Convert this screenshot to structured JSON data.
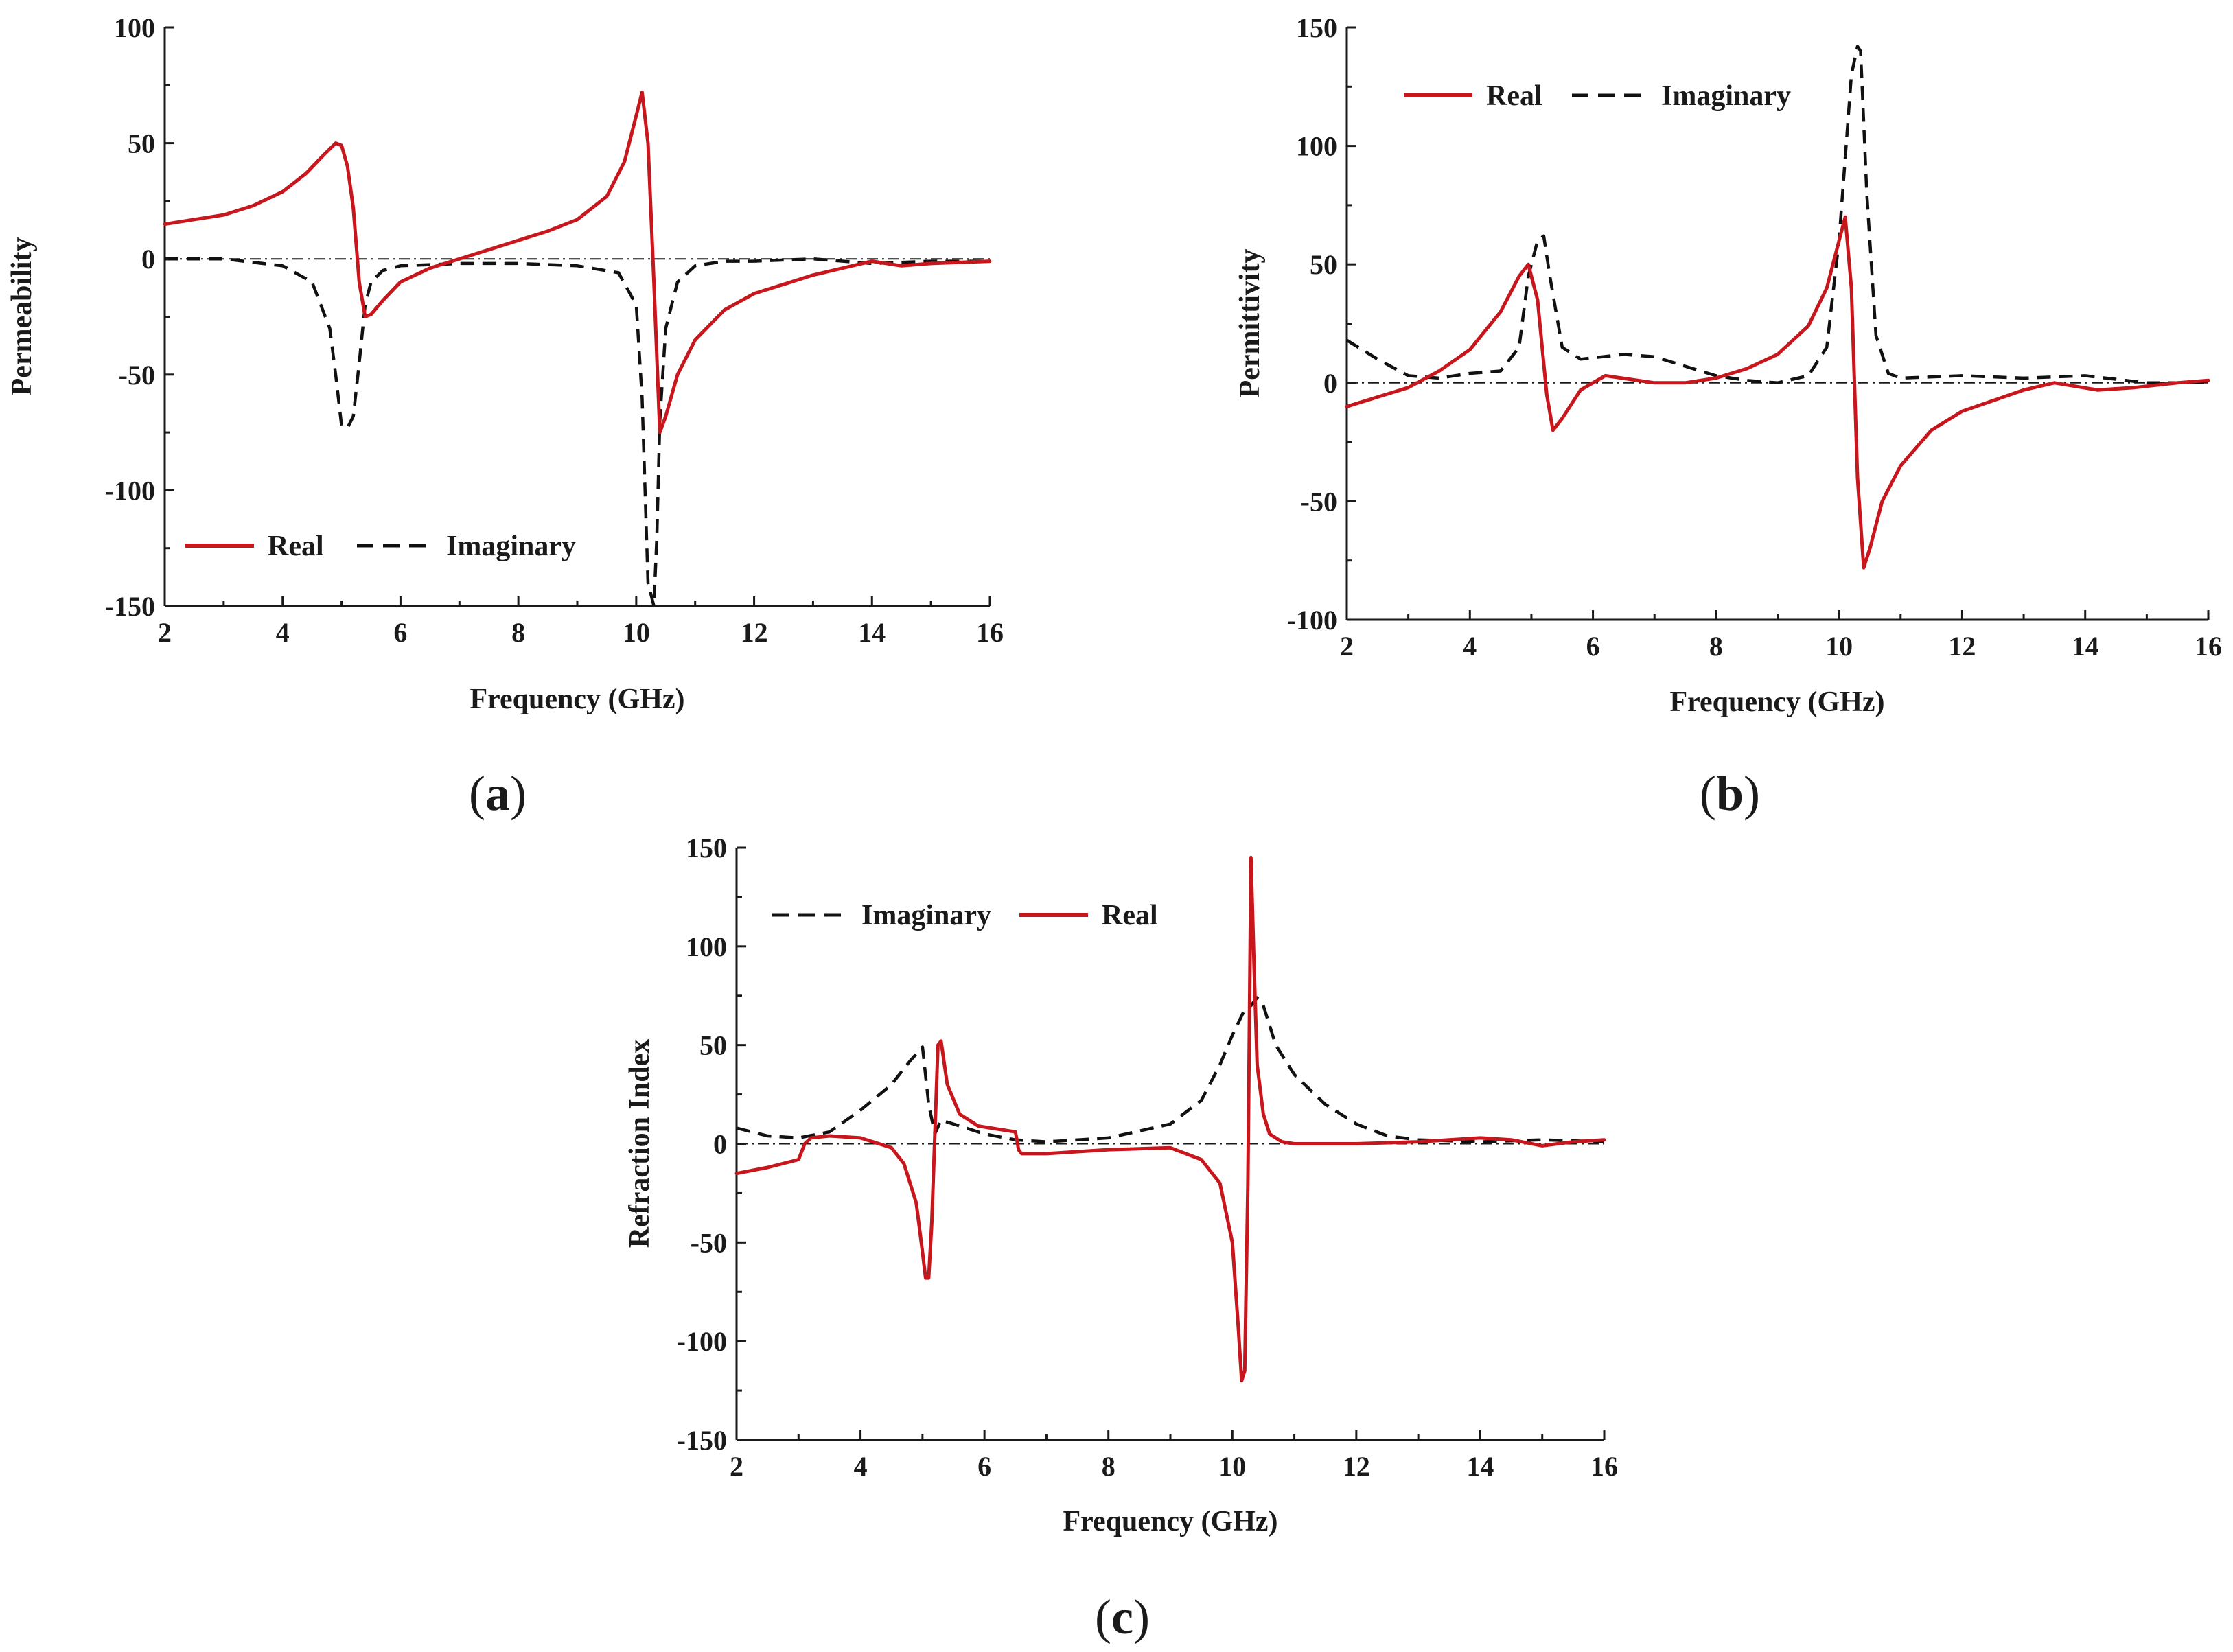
{
  "figure": {
    "colors": {
      "real": "#c8161d",
      "imaginary": "#111111",
      "axis": "#1a1a1a"
    }
  },
  "chart_data": [
    {
      "id": "a",
      "type": "line",
      "panel_label": {
        "open": "(",
        "letter": "a",
        "close": ")"
      },
      "xlabel": "Frequency (GHz)",
      "ylabel": "Permeability",
      "xlim": [
        2,
        16
      ],
      "ylim": [
        -150,
        100
      ],
      "xticks": [
        2,
        4,
        6,
        8,
        10,
        12,
        14,
        16
      ],
      "yticks": [
        -150,
        -100,
        -50,
        0,
        50,
        100
      ],
      "zero_reference_line": true,
      "legend_position": "bottom-left",
      "legend_order": [
        "Real",
        "Imaginary"
      ],
      "series": [
        {
          "name": "Real",
          "style": "solid",
          "x": [
            2,
            3,
            3.5,
            4,
            4.4,
            4.7,
            4.9,
            5.0,
            5.1,
            5.2,
            5.3,
            5.4,
            5.5,
            5.7,
            6,
            6.5,
            7,
            8,
            8.5,
            9,
            9.5,
            9.8,
            10.0,
            10.1,
            10.2,
            10.3,
            10.4,
            10.5,
            10.7,
            11,
            11.5,
            12,
            13,
            13.5,
            14,
            14.5,
            15,
            16
          ],
          "y": [
            15,
            19,
            23,
            29,
            37,
            45,
            50,
            49,
            40,
            22,
            -10,
            -25,
            -24,
            -18,
            -10,
            -4,
            0,
            8,
            12,
            17,
            27,
            42,
            62,
            72,
            50,
            -10,
            -75,
            -68,
            -50,
            -35,
            -22,
            -15,
            -7,
            -4,
            -1,
            -3,
            -2,
            -1
          ]
        },
        {
          "name": "Imaginary",
          "style": "dashed",
          "x": [
            2,
            3,
            4,
            4.5,
            4.8,
            4.9,
            5.0,
            5.1,
            5.2,
            5.3,
            5.4,
            5.5,
            5.7,
            6,
            7,
            8,
            9,
            9.7,
            10.0,
            10.1,
            10.2,
            10.3,
            10.35,
            10.4,
            10.5,
            10.7,
            11,
            11.5,
            12,
            13,
            14,
            15,
            16
          ],
          "y": [
            0,
            0,
            -3,
            -10,
            -30,
            -50,
            -72,
            -73,
            -68,
            -45,
            -20,
            -10,
            -5,
            -3,
            -2,
            -2,
            -3,
            -6,
            -20,
            -60,
            -140,
            -150,
            -120,
            -70,
            -30,
            -10,
            -3,
            -1,
            -1,
            0,
            -2,
            -1,
            -1
          ]
        }
      ]
    },
    {
      "id": "b",
      "type": "line",
      "panel_label": {
        "open": "(",
        "letter": "b",
        "close": ")"
      },
      "xlabel": "Frequency (GHz)",
      "ylabel": "Permittivity",
      "xlim": [
        2,
        16
      ],
      "ylim": [
        -100,
        150
      ],
      "xticks": [
        2,
        4,
        6,
        8,
        10,
        12,
        14,
        16
      ],
      "yticks": [
        -100,
        -50,
        0,
        50,
        100,
        150
      ],
      "zero_reference_line": true,
      "legend_position": "top-left",
      "legend_order": [
        "Real",
        "Imaginary"
      ],
      "series": [
        {
          "name": "Real",
          "style": "solid",
          "x": [
            2,
            2.5,
            3,
            3.5,
            4,
            4.5,
            4.8,
            4.95,
            5.1,
            5.25,
            5.35,
            5.5,
            5.8,
            6.2,
            7,
            7.5,
            8,
            8.5,
            9,
            9.5,
            9.8,
            10.0,
            10.1,
            10.2,
            10.3,
            10.4,
            10.5,
            10.7,
            11,
            11.5,
            12,
            13,
            13.5,
            14.2,
            14.8,
            15.5,
            16
          ],
          "y": [
            -10,
            -6,
            -2,
            5,
            14,
            30,
            45,
            50,
            35,
            -5,
            -20,
            -15,
            -3,
            3,
            0,
            0,
            2,
            6,
            12,
            24,
            40,
            60,
            70,
            40,
            -40,
            -78,
            -70,
            -50,
            -35,
            -20,
            -12,
            -3,
            0,
            -3,
            -2,
            0,
            1
          ]
        },
        {
          "name": "Imaginary",
          "style": "dashed",
          "x": [
            2,
            2.5,
            3,
            3.5,
            4,
            4.5,
            4.8,
            4.95,
            5.1,
            5.2,
            5.3,
            5.5,
            5.8,
            6.5,
            7,
            7.5,
            8,
            8.5,
            9,
            9.5,
            9.8,
            10.0,
            10.2,
            10.3,
            10.35,
            10.45,
            10.6,
            10.8,
            11,
            12,
            13,
            14,
            15,
            16
          ],
          "y": [
            18,
            10,
            3,
            2,
            4,
            5,
            15,
            45,
            60,
            62,
            45,
            15,
            10,
            12,
            11,
            7,
            3,
            1,
            0,
            3,
            15,
            60,
            130,
            142,
            140,
            80,
            20,
            4,
            2,
            3,
            2,
            3,
            0,
            0
          ]
        }
      ]
    },
    {
      "id": "c",
      "type": "line",
      "panel_label": {
        "open": "(",
        "letter": "c",
        "close": ")"
      },
      "xlabel": "Frequency (GHz)",
      "ylabel": "Refraction Index",
      "xlim": [
        2,
        16
      ],
      "ylim": [
        -150,
        150
      ],
      "xticks": [
        2,
        4,
        6,
        8,
        10,
        12,
        14,
        16
      ],
      "yticks": [
        -150,
        -100,
        -50,
        0,
        50,
        100,
        150
      ],
      "zero_reference_line": true,
      "legend_position": "top-left",
      "legend_order": [
        "Imaginary",
        "Real"
      ],
      "series": [
        {
          "name": "Real",
          "style": "solid",
          "x": [
            2,
            2.5,
            3.0,
            3.1,
            3.2,
            3.5,
            4.0,
            4.5,
            4.7,
            4.9,
            5.0,
            5.05,
            5.1,
            5.15,
            5.2,
            5.25,
            5.3,
            5.4,
            5.6,
            5.9,
            6.5,
            6.55,
            6.6,
            7,
            8,
            9,
            9.5,
            9.8,
            10.0,
            10.1,
            10.15,
            10.2,
            10.25,
            10.3,
            10.35,
            10.4,
            10.5,
            10.6,
            10.8,
            11,
            12,
            13,
            14,
            14.5,
            15,
            15.5,
            16
          ],
          "y": [
            -15,
            -12,
            -8,
            0,
            3,
            4,
            3,
            -2,
            -10,
            -30,
            -55,
            -68,
            -68,
            -40,
            5,
            50,
            52,
            30,
            15,
            9,
            6,
            -3,
            -5,
            -5,
            -3,
            -2,
            -8,
            -20,
            -50,
            -95,
            -120,
            -115,
            -20,
            145,
            90,
            40,
            15,
            5,
            1,
            0,
            0,
            1,
            3,
            2,
            -1,
            1,
            2
          ]
        },
        {
          "name": "Imaginary",
          "style": "dashed",
          "x": [
            2,
            2.5,
            3,
            3.5,
            4,
            4.5,
            4.8,
            5.0,
            5.1,
            5.2,
            5.3,
            5.6,
            6,
            6.5,
            7,
            8,
            9,
            9.5,
            9.8,
            10.0,
            10.2,
            10.3,
            10.4,
            10.5,
            10.7,
            11,
            11.5,
            12,
            12.5,
            13,
            14,
            15,
            16
          ],
          "y": [
            8,
            4,
            3,
            6,
            17,
            30,
            42,
            49,
            20,
            5,
            12,
            9,
            5,
            2,
            1,
            3,
            10,
            22,
            40,
            55,
            68,
            70,
            74,
            70,
            50,
            35,
            20,
            10,
            4,
            2,
            1,
            2,
            1
          ]
        }
      ]
    }
  ]
}
